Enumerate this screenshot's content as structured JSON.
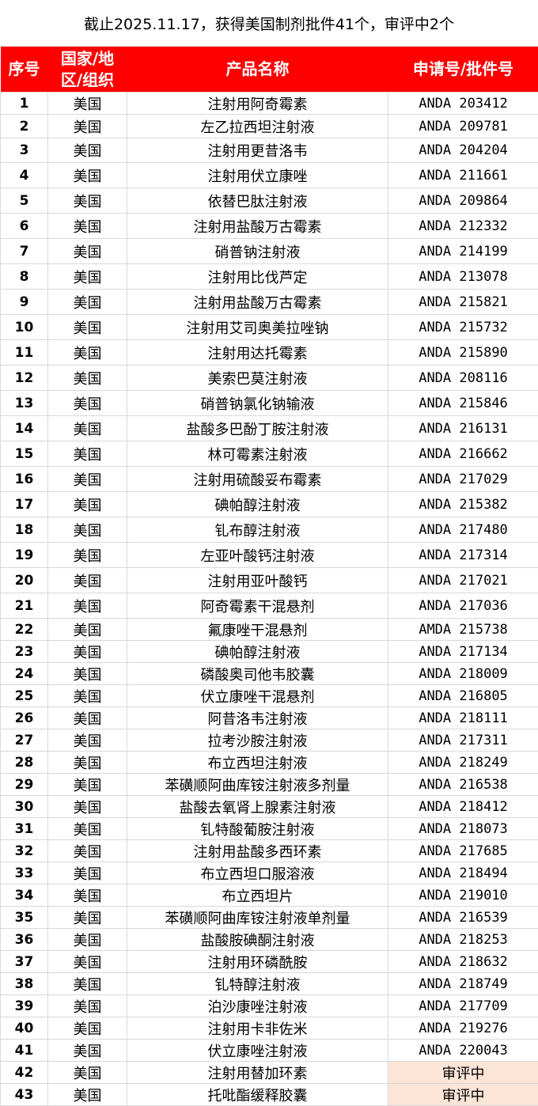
{
  "title": "截止2025.11.17，获得美国制剂批件41个，审评中2个",
  "colors": {
    "header_bg": "#ff0000",
    "header_text": "#ffffff",
    "pending_bg": "#fce4d6"
  },
  "headers": [
    "序号",
    "国家/地区/组织",
    "产品名称",
    "申请号/批件号"
  ],
  "rows": [
    [
      "1",
      "美国",
      "注射用阿奇霉素",
      "ANDA 203412"
    ],
    [
      "2",
      "美国",
      "左乙拉西坦注射液",
      "ANDA 209781"
    ],
    [
      "3",
      "美国",
      "注射用更昔洛韦",
      "ANDA 204204"
    ],
    [
      "4",
      "美国",
      "注射用伏立康唑",
      "ANDA 211661"
    ],
    [
      "5",
      "美国",
      "依替巴肽注射液",
      "ANDA 209864"
    ],
    [
      "6",
      "美国",
      "注射用盐酸万古霉素",
      "ANDA 212332"
    ],
    [
      "7",
      "美国",
      "硝普钠注射液",
      "ANDA 214199"
    ],
    [
      "8",
      "美国",
      "注射用比伐芦定",
      "ANDA 213078"
    ],
    [
      "9",
      "美国",
      "注射用盐酸万古霉素",
      "ANDA 215821"
    ],
    [
      "10",
      "美国",
      "注射用艾司奥美拉唑钠",
      "ANDA 215732"
    ],
    [
      "11",
      "美国",
      "注射用达托霉素",
      "ANDA 215890"
    ],
    [
      "12",
      "美国",
      "美索巴莫注射液",
      "ANDA 208116"
    ],
    [
      "13",
      "美国",
      "硝普钠氯化钠输液",
      "ANDA 215846"
    ],
    [
      "14",
      "美国",
      "盐酸多巴酚丁胺注射液",
      "ANDA 216131"
    ],
    [
      "15",
      "美国",
      "林可霉素注射液",
      "ANDA 216662"
    ],
    [
      "16",
      "美国",
      "注射用硫酸妥布霉素",
      "ANDA 217029"
    ],
    [
      "17",
      "美国",
      "碘帕醇注射液",
      "ANDA 215382"
    ],
    [
      "18",
      "美国",
      "钆布醇注射液",
      "ANDA 217480"
    ],
    [
      "19",
      "美国",
      "左亚叶酸钙注射液",
      "ANDA 217314"
    ],
    [
      "20",
      "美国",
      "注射用亚叶酸钙",
      "ANDA 217021"
    ],
    [
      "21",
      "美国",
      "阿奇霉素干混悬剂",
      "ANDA 217036"
    ],
    [
      "22",
      "美国",
      "氟康唑干混悬剂",
      "AMDA 215738"
    ],
    [
      "23",
      "美国",
      "碘帕醇注射液",
      "ANDA 217134"
    ],
    [
      "24",
      "美国",
      "磷酸奥司他韦胶囊",
      "ANDA 218009"
    ],
    [
      "25",
      "美国",
      "伏立康唑干混悬剂",
      "ANDA 216805"
    ],
    [
      "26",
      "美国",
      "阿昔洛韦注射液",
      "ANDA 218111"
    ],
    [
      "27",
      "美国",
      "拉考沙胺注射液",
      "ANDA 217311"
    ],
    [
      "28",
      "美国",
      "布立西坦注射液",
      "ANDA 218249"
    ],
    [
      "29",
      "美国",
      "苯磺顺阿曲库铵注射液多剂量",
      "ANDA 216538"
    ],
    [
      "30",
      "美国",
      "盐酸去氧肾上腺素注射液",
      "ANDA 218412"
    ],
    [
      "31",
      "美国",
      "钆特酸葡胺注射液",
      "ANDA 218073"
    ],
    [
      "32",
      "美国",
      "注射用盐酸多西环素",
      "ANDA 217685"
    ],
    [
      "33",
      "美国",
      "布立西坦口服溶液",
      "ANDA 218494"
    ],
    [
      "34",
      "美国",
      "布立西坦片",
      "ANDA 219010"
    ],
    [
      "35",
      "美国",
      "苯磺顺阿曲库铵注射液单剂量",
      "ANDA 216539"
    ],
    [
      "36",
      "美国",
      "盐酸胺碘酮注射液",
      "ANDA 218253"
    ],
    [
      "37",
      "美国",
      "注射用环磷酰胺",
      "ANDA 218632"
    ],
    [
      "38",
      "美国",
      "钆特醇注射液",
      "ANDA 218749"
    ],
    [
      "39",
      "美国",
      "泊沙康唑注射液",
      "ANDA 217709"
    ],
    [
      "40",
      "美国",
      "注射用卡非佐米",
      "ANDA 219276"
    ],
    [
      "41",
      "美国",
      "伏立康唑注射液",
      "ANDA 220043"
    ],
    [
      "42",
      "美国",
      "注射用替加环素",
      "审评中"
    ],
    [
      "43",
      "美国",
      "托吡酯缓释胶囊",
      "审评中"
    ]
  ]
}
